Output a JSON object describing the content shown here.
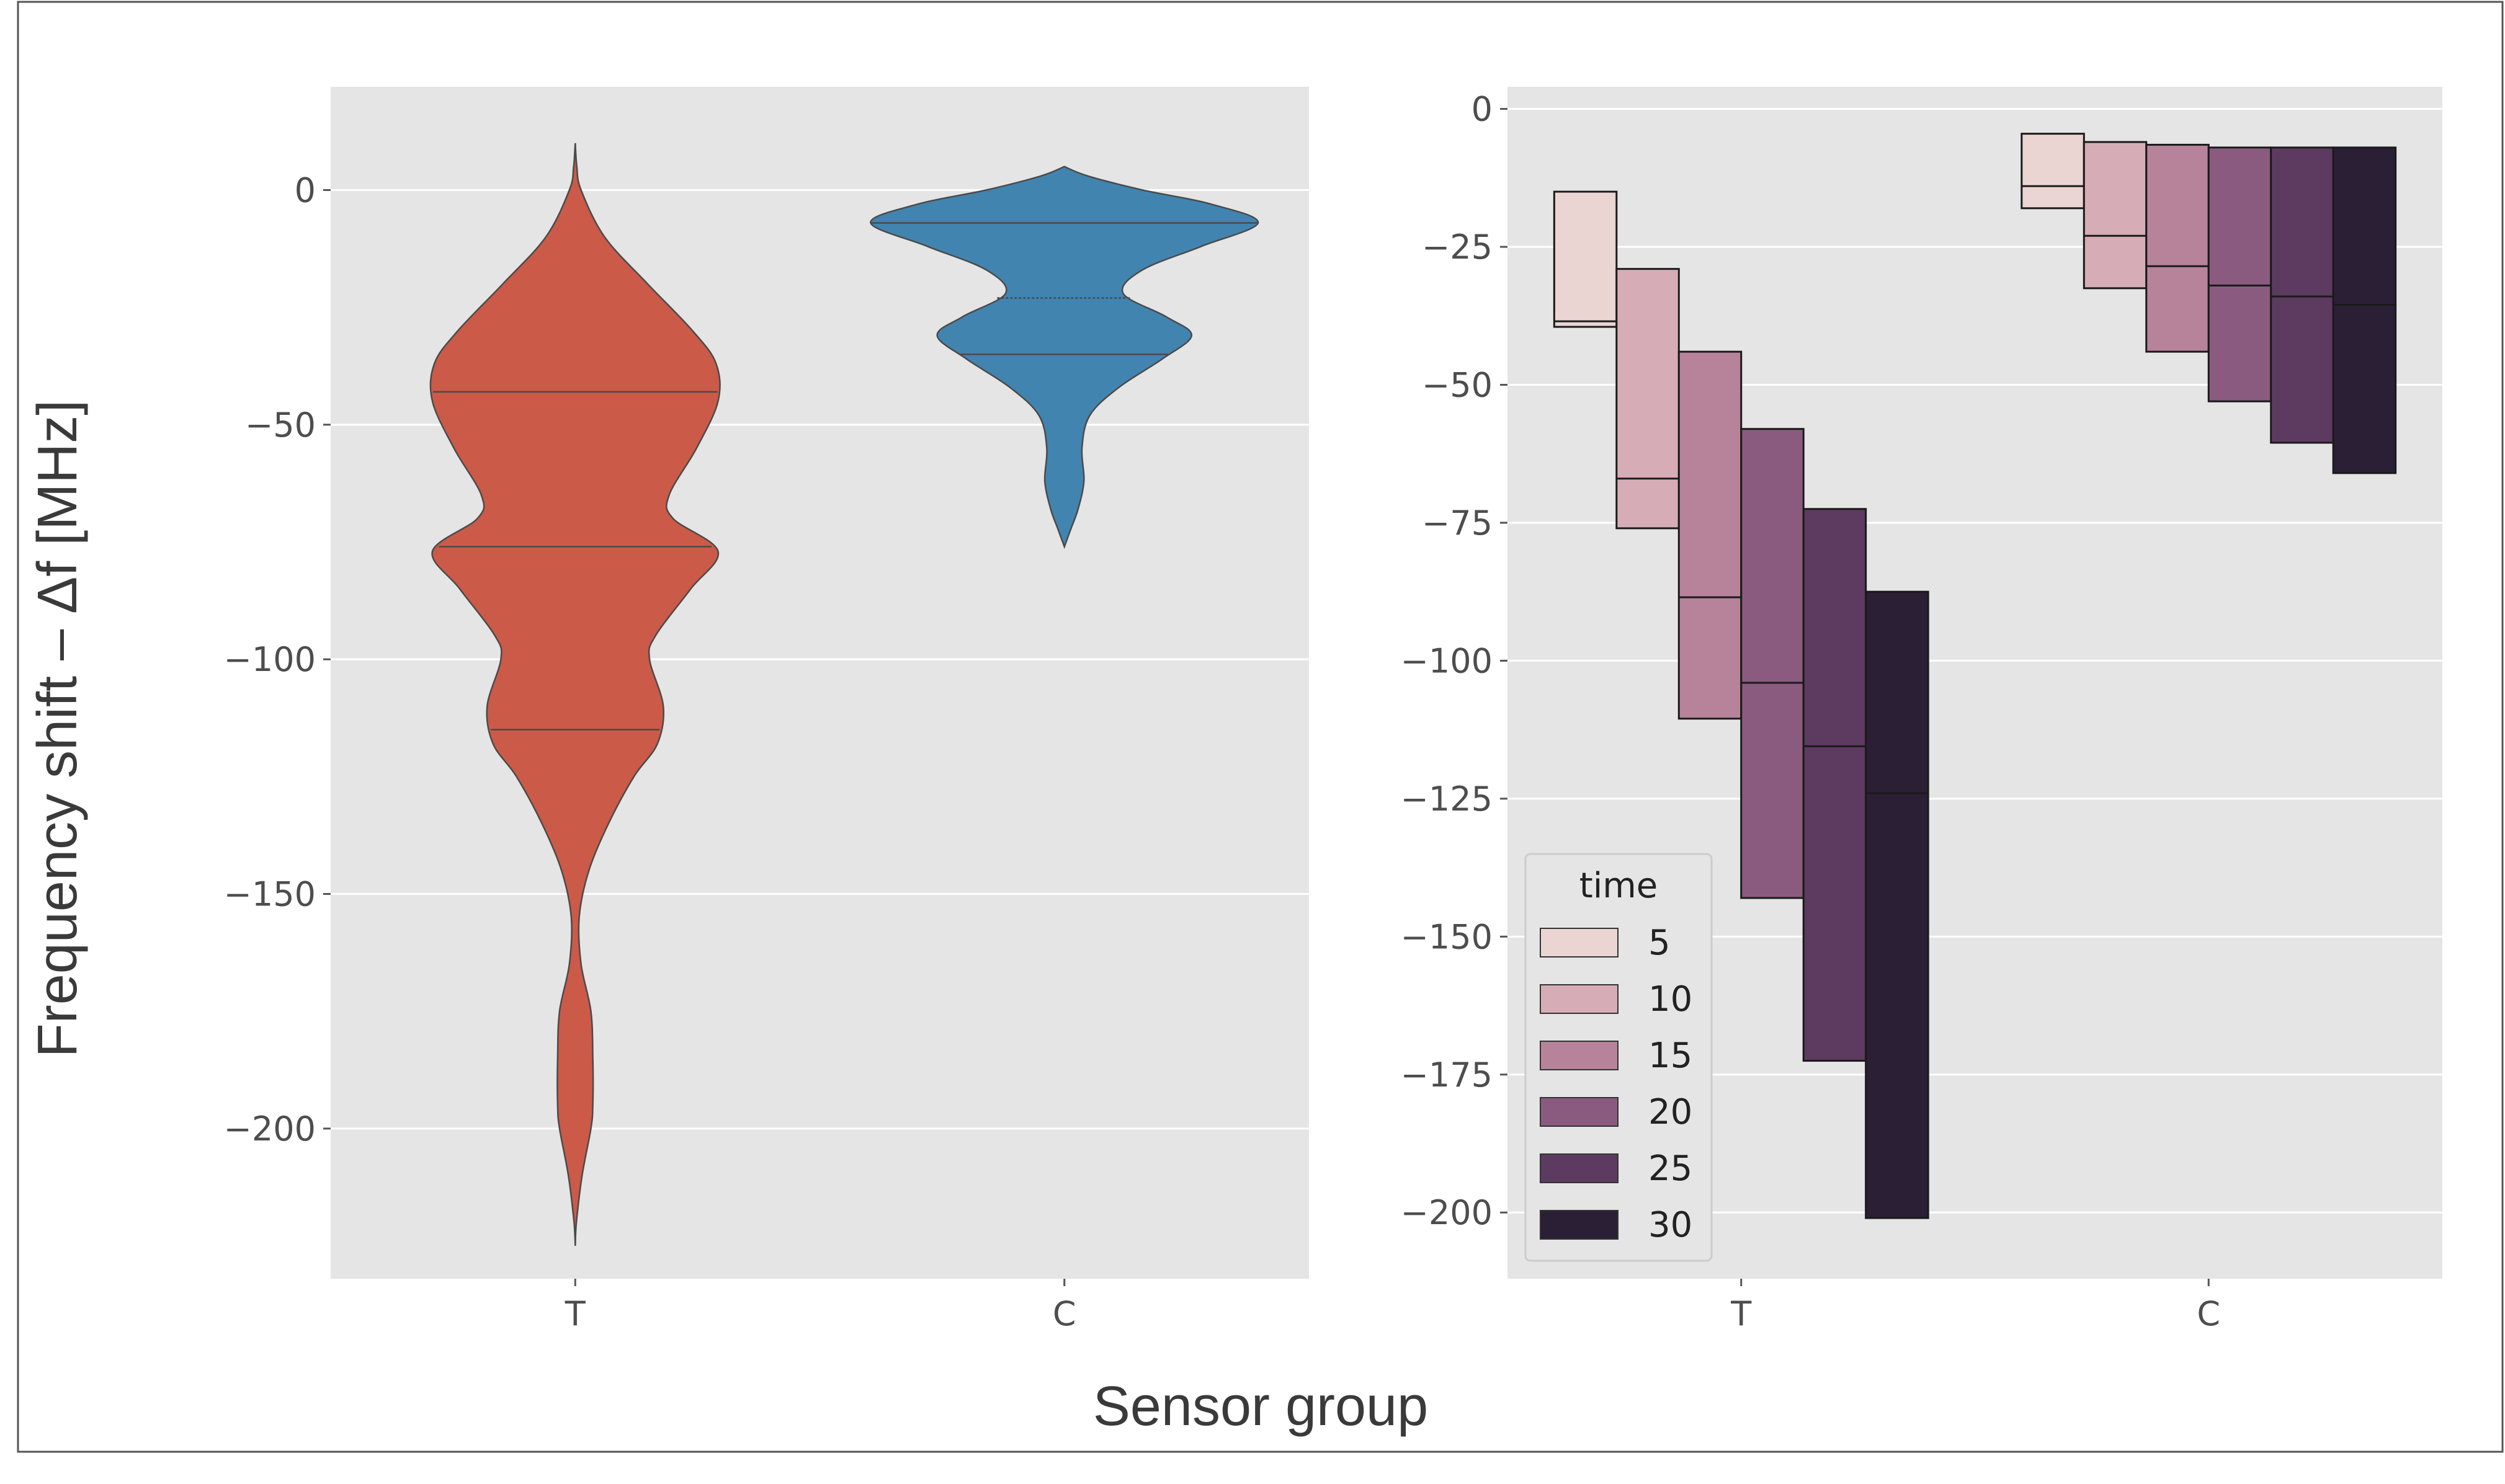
{
  "figure": {
    "xlabel": "Sensor group",
    "ylabel": "Frequency shift – Δf [MHz]"
  },
  "chart_data": [
    {
      "type": "violin",
      "categories": [
        "T",
        "C"
      ],
      "ylim": [
        -232,
        22
      ],
      "yticks": [
        0,
        -50,
        -100,
        -150,
        -200
      ],
      "ytick_labels": [
        "0",
        "−50",
        "−100",
        "−150",
        "−200"
      ],
      "grid": true,
      "colors": {
        "T": "#cc5a48",
        "C": "#4284b0",
        "background": "#e5e5e5",
        "grid": "#ffffff"
      },
      "series": [
        {
          "category": "T",
          "range": [
            -225,
            10
          ],
          "quartiles": [
            -43,
            -76,
            -115
          ],
          "density": [
            [
              10,
              0.0
            ],
            [
              5,
              0.008
            ],
            [
              0,
              0.03
            ],
            [
              -10,
              0.15
            ],
            [
              -20,
              0.37
            ],
            [
              -30,
              0.6
            ],
            [
              -37,
              0.72
            ],
            [
              -45,
              0.73
            ],
            [
              -55,
              0.62
            ],
            [
              -65,
              0.48
            ],
            [
              -70,
              0.5
            ],
            [
              -77,
              0.73
            ],
            [
              -85,
              0.59
            ],
            [
              -95,
              0.41
            ],
            [
              -100,
              0.38
            ],
            [
              -110,
              0.45
            ],
            [
              -118,
              0.42
            ],
            [
              -125,
              0.3
            ],
            [
              -135,
              0.17
            ],
            [
              -145,
              0.07
            ],
            [
              -155,
              0.02
            ],
            [
              -165,
              0.03
            ],
            [
              -175,
              0.08
            ],
            [
              -185,
              0.09
            ],
            [
              -195,
              0.09
            ],
            [
              -200,
              0.08
            ],
            [
              -210,
              0.035
            ],
            [
              -220,
              0.006
            ],
            [
              -225,
              0.0
            ]
          ]
        },
        {
          "category": "C",
          "range": [
            -76,
            5
          ],
          "quartiles": [
            -7,
            -23,
            -35
          ],
          "dashed_median": true,
          "density": [
            [
              5,
              0.0
            ],
            [
              3,
              0.12
            ],
            [
              0,
              0.4
            ],
            [
              -3,
              0.75
            ],
            [
              -7,
              0.99
            ],
            [
              -12,
              0.7
            ],
            [
              -17,
              0.4
            ],
            [
              -22,
              0.3
            ],
            [
              -27,
              0.52
            ],
            [
              -31,
              0.65
            ],
            [
              -36,
              0.5
            ],
            [
              -42,
              0.28
            ],
            [
              -48,
              0.13
            ],
            [
              -55,
              0.09
            ],
            [
              -62,
              0.1
            ],
            [
              -68,
              0.07
            ],
            [
              -72,
              0.035
            ],
            [
              -76,
              0.0
            ]
          ]
        }
      ]
    },
    {
      "type": "boxen",
      "categories": [
        "T",
        "C"
      ],
      "ylim": [
        -212,
        4
      ],
      "yticks": [
        0,
        -25,
        -50,
        -75,
        -100,
        -125,
        -150,
        -175,
        -200
      ],
      "ytick_labels": [
        "0",
        "−25",
        "−50",
        "−75",
        "−100",
        "−125",
        "−150",
        "−175",
        "−200"
      ],
      "grid": true,
      "legend": {
        "title": "time",
        "placement": "lower-left",
        "entries": [
          "5",
          "10",
          "15",
          "20",
          "25",
          "30"
        ]
      },
      "hue_colors": [
        "#ead5d3",
        "#d6adb6",
        "#b7839a",
        "#8a5b7f",
        "#5d3a5f",
        "#2b1f36"
      ],
      "series": [
        {
          "name": "5",
          "T": {
            "top": -15,
            "bottom": -39.5,
            "median": -38.5
          },
          "C": {
            "top": -4.5,
            "bottom": -18,
            "median": -14
          }
        },
        {
          "name": "10",
          "T": {
            "top": -29,
            "bottom": -76,
            "median": -67
          },
          "C": {
            "top": -6,
            "bottom": -32.5,
            "median": -23
          }
        },
        {
          "name": "15",
          "T": {
            "top": -44,
            "bottom": -110.5,
            "median": -88.5
          },
          "C": {
            "top": -6.5,
            "bottom": -44,
            "median": -28.5
          }
        },
        {
          "name": "20",
          "T": {
            "top": -58,
            "bottom": -143,
            "median": -104
          },
          "C": {
            "top": -7,
            "bottom": -53,
            "median": -32
          }
        },
        {
          "name": "25",
          "T": {
            "top": -72.5,
            "bottom": -172.5,
            "median": -115.5
          },
          "C": {
            "top": -7,
            "bottom": -60.5,
            "median": -34
          }
        },
        {
          "name": "30",
          "T": {
            "top": -87.5,
            "bottom": -201,
            "median": -124
          },
          "C": {
            "top": -7,
            "bottom": -66,
            "median": -35.5
          }
        }
      ]
    }
  ]
}
